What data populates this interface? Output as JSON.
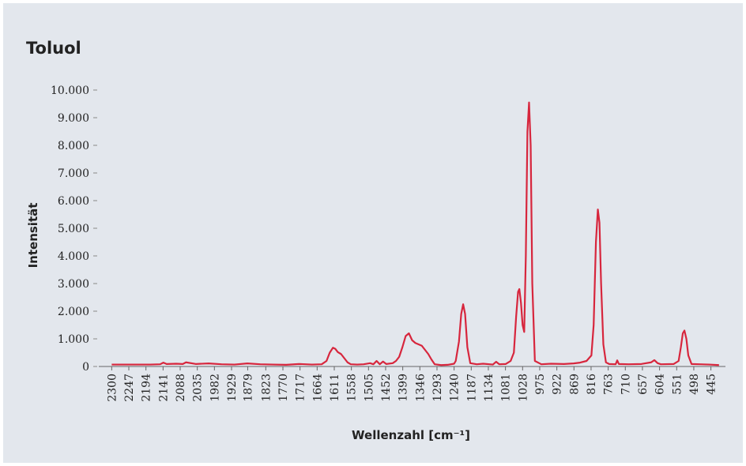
{
  "chart_data": {
    "type": "line",
    "title": "Toluol",
    "y_label": "Intensität",
    "x_label": "Wellenzahl [cm⁻¹]",
    "color": "#d7263d",
    "xlim": [
      2340,
      400
    ],
    "xticks": [
      2300,
      2247,
      2194,
      2141,
      2088,
      2035,
      1982,
      1929,
      1879,
      1823,
      1770,
      1717,
      1664,
      1611,
      1558,
      1505,
      1452,
      1399,
      1346,
      1293,
      1240,
      1187,
      1134,
      1081,
      1028,
      975,
      922,
      869,
      816,
      763,
      710,
      657,
      604,
      551,
      498,
      445
    ],
    "ylim": [
      0,
      10000
    ],
    "yticks": [
      0,
      {
        "value": 1000,
        "label": "1.000"
      },
      {
        "value": 2000,
        "label": "2.000"
      },
      {
        "value": 3000,
        "label": "3.000"
      },
      {
        "value": 4000,
        "label": "4.000"
      },
      {
        "value": 5000,
        "label": "5.000"
      },
      {
        "value": 6000,
        "label": "6.000"
      },
      {
        "value": 7000,
        "label": "7.000"
      },
      {
        "value": 8000,
        "label": "8.000"
      },
      {
        "value": 9000,
        "label": "9.000"
      },
      {
        "value": 10000,
        "label": "10.000"
      }
    ],
    "x": [
      2300,
      2260,
      2220,
      2180,
      2150,
      2140,
      2130,
      2100,
      2080,
      2070,
      2040,
      2000,
      1960,
      1920,
      1880,
      1840,
      1800,
      1760,
      1720,
      1680,
      1650,
      1635,
      1625,
      1615,
      1608,
      1600,
      1590,
      1580,
      1570,
      1560,
      1540,
      1520,
      1500,
      1490,
      1480,
      1470,
      1460,
      1450,
      1430,
      1420,
      1410,
      1400,
      1390,
      1380,
      1370,
      1360,
      1350,
      1340,
      1330,
      1320,
      1310,
      1300,
      1280,
      1260,
      1240,
      1235,
      1225,
      1218,
      1212,
      1206,
      1199,
      1190,
      1170,
      1150,
      1120,
      1110,
      1100,
      1080,
      1065,
      1055,
      1048,
      1042,
      1038,
      1033,
      1028,
      1023,
      1018,
      1013,
      1008,
      1003,
      998,
      990,
      970,
      940,
      900,
      870,
      850,
      830,
      815,
      808,
      801,
      795,
      790,
      785,
      778,
      770,
      760,
      740,
      735,
      730,
      700,
      660,
      630,
      620,
      610,
      600,
      560,
      545,
      538,
      532,
      527,
      521,
      515,
      505,
      480,
      450,
      420
    ],
    "values": [
      70,
      70,
      70,
      70,
      80,
      140,
      90,
      100,
      90,
      150,
      90,
      110,
      80,
      70,
      110,
      80,
      70,
      60,
      90,
      70,
      80,
      200,
      500,
      680,
      640,
      520,
      450,
      300,
      150,
      80,
      70,
      80,
      120,
      80,
      200,
      80,
      180,
      90,
      120,
      200,
      350,
      700,
      1100,
      1200,
      950,
      850,
      800,
      750,
      600,
      450,
      250,
      80,
      50,
      60,
      100,
      200,
      900,
      1900,
      2250,
      1900,
      700,
      120,
      80,
      100,
      70,
      170,
      80,
      90,
      200,
      500,
      1800,
      2700,
      2800,
      2300,
      1500,
      1250,
      4000,
      8500,
      9550,
      8000,
      3000,
      200,
      80,
      100,
      90,
      110,
      140,
      200,
      400,
      1500,
      4500,
      5680,
      5200,
      3000,
      800,
      150,
      90,
      80,
      220,
      90,
      80,
      90,
      150,
      230,
      120,
      80,
      90,
      200,
      700,
      1200,
      1300,
      1000,
      400,
      90,
      80,
      70,
      50
    ]
  }
}
